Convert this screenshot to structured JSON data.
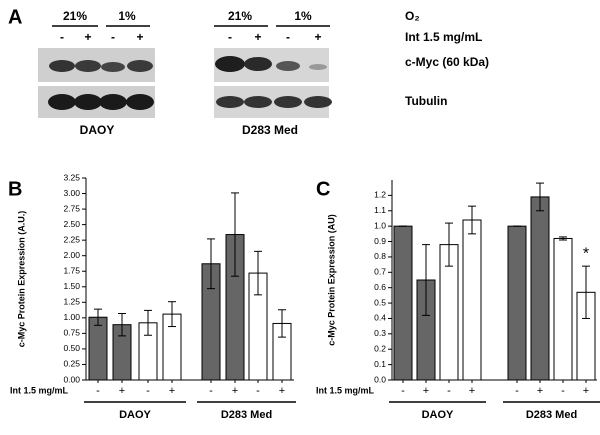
{
  "panel_labels": [
    "A",
    "B",
    "C"
  ],
  "blot": {
    "conditions": [
      "21%",
      "1%",
      "21%",
      "1%"
    ],
    "condition_label": "O₂",
    "treatment": [
      "-",
      "+",
      "-",
      "+",
      "-",
      "+",
      "-",
      "+"
    ],
    "treatment_label": "Int 1.5 mg/mL",
    "bands": [
      "c-Myc (60 kDa)",
      "Tubulin"
    ],
    "cell_lines": [
      "DAOY",
      "D283 Med"
    ]
  },
  "chart_data": [
    {
      "type": "bar",
      "y_label": "c-Myc Protein Expression  (A.U.)",
      "x_label": "Int 1.5 mg/mL",
      "categories": [
        "-",
        "+",
        "-",
        "+",
        "-",
        "+",
        "-",
        "+"
      ],
      "groups": [
        "DAOY",
        "D283 Med"
      ],
      "values": [
        1.01,
        0.89,
        0.92,
        1.06,
        1.87,
        2.34,
        1.72,
        0.91
      ],
      "errors": [
        0.13,
        0.18,
        0.2,
        0.2,
        0.4,
        0.67,
        0.35,
        0.22
      ],
      "colors": [
        "#666666",
        "#666666",
        "#ffffff",
        "#ffffff",
        "#666666",
        "#666666",
        "#ffffff",
        "#ffffff"
      ],
      "ylim": [
        0,
        3.25
      ],
      "yticks": [
        {
          "value": 0,
          "label": "0.00"
        },
        0.25,
        {
          "value": 0.5,
          "label": "0.50"
        },
        0.75,
        {
          "value": 1,
          "label": "1.00"
        },
        1.25,
        {
          "value": 1.5,
          "label": "1.50"
        },
        1.75,
        {
          "value": 2,
          "label": "2.00"
        },
        2.25,
        {
          "value": 2.5,
          "label": "2.50"
        },
        2.75,
        {
          "value": 3,
          "label": "3.00"
        },
        3.25
      ]
    },
    {
      "type": "bar",
      "y_label": "c-Myc Protein Expression (AU)",
      "x_label": "Int 1.5 mg/mL",
      "categories": [
        "-",
        "+",
        "-",
        "+",
        "-",
        "+",
        "-",
        "+"
      ],
      "groups": [
        "DAOY",
        "D283 Med"
      ],
      "values": [
        1.0,
        0.65,
        0.88,
        1.04,
        1.0,
        1.19,
        0.92,
        0.57
      ],
      "errors": [
        0,
        0.23,
        0.14,
        0.09,
        0,
        0.09,
        0.01,
        0.17
      ],
      "colors": [
        "#666666",
        "#666666",
        "#ffffff",
        "#ffffff",
        "#666666",
        "#666666",
        "#ffffff",
        "#ffffff"
      ],
      "annotation": "*",
      "ylim": [
        0,
        1.3
      ],
      "yticks": [
        {
          "value": 0,
          "label": "0.0"
        },
        0.1,
        0.2,
        0.3,
        0.4,
        0.5,
        0.6,
        0.7,
        0.8,
        0.9,
        {
          "value": 1,
          "label": "1.0"
        },
        1.1,
        1.2
      ]
    }
  ]
}
